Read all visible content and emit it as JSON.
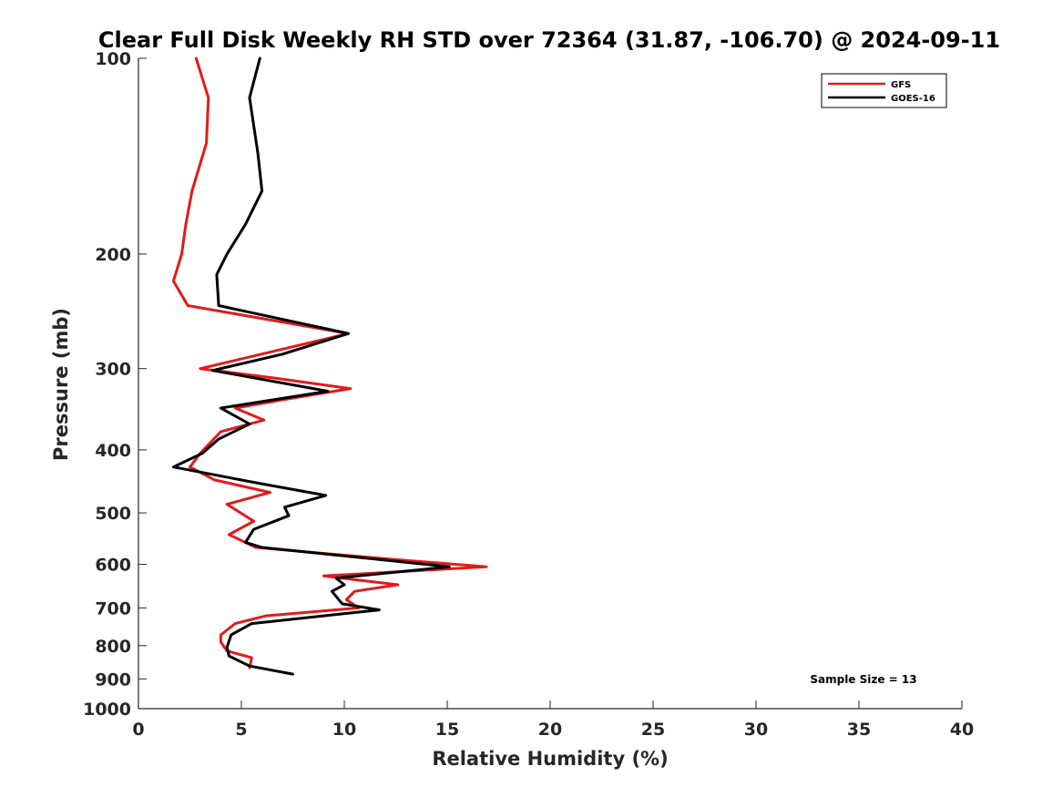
{
  "chart_data": {
    "type": "line",
    "title": "Clear Full Disk Weekly RH STD over 72364 (31.87, -106.70) @ 2024-09-11",
    "xlabel": "Relative Humidity (%)",
    "ylabel": "Pressure (mb)",
    "xlim": [
      0,
      40
    ],
    "ylim": [
      100,
      1000
    ],
    "yscale": "log",
    "y_reversed": true,
    "x_ticks": [
      0,
      5,
      10,
      15,
      20,
      25,
      30,
      35,
      40
    ],
    "y_ticks": [
      100,
      200,
      300,
      400,
      500,
      600,
      700,
      800,
      900,
      1000
    ],
    "grid": false,
    "legend_position": "top-right",
    "annotation": "Sample Size = 13",
    "series": [
      {
        "name": "GFS",
        "color": "#e31a1c",
        "points": [
          [
            2.8,
            100
          ],
          [
            3.4,
            115
          ],
          [
            3.3,
            135
          ],
          [
            2.6,
            160
          ],
          [
            2.3,
            180
          ],
          [
            2.1,
            200
          ],
          [
            1.7,
            220
          ],
          [
            2.4,
            240
          ],
          [
            10.2,
            265
          ],
          [
            7.0,
            280
          ],
          [
            3.0,
            300
          ],
          [
            6.5,
            310
          ],
          [
            10.3,
            322
          ],
          [
            7.0,
            335
          ],
          [
            4.7,
            345
          ],
          [
            6.1,
            360
          ],
          [
            4.0,
            375
          ],
          [
            3.0,
            405
          ],
          [
            2.5,
            425
          ],
          [
            3.7,
            445
          ],
          [
            6.4,
            465
          ],
          [
            4.3,
            485
          ],
          [
            5.6,
            515
          ],
          [
            4.4,
            540
          ],
          [
            5.7,
            565
          ],
          [
            12.5,
            590
          ],
          [
            16.9,
            605
          ],
          [
            9.0,
            625
          ],
          [
            12.6,
            645
          ],
          [
            10.5,
            660
          ],
          [
            10.1,
            680
          ],
          [
            10.7,
            700
          ],
          [
            6.2,
            720
          ],
          [
            4.7,
            740
          ],
          [
            4.0,
            770
          ],
          [
            4.0,
            790
          ],
          [
            4.3,
            815
          ],
          [
            5.5,
            835
          ],
          [
            5.4,
            865
          ]
        ]
      },
      {
        "name": "GOES-16",
        "color": "#000000",
        "points": [
          [
            5.9,
            100
          ],
          [
            5.4,
            115
          ],
          [
            5.8,
            140
          ],
          [
            6.0,
            160
          ],
          [
            5.2,
            180
          ],
          [
            4.3,
            200
          ],
          [
            3.8,
            215
          ],
          [
            3.9,
            240
          ],
          [
            10.2,
            265
          ],
          [
            7.0,
            285
          ],
          [
            3.6,
            302
          ],
          [
            9.2,
            325
          ],
          [
            4.0,
            345
          ],
          [
            5.4,
            365
          ],
          [
            3.9,
            385
          ],
          [
            3.1,
            405
          ],
          [
            1.7,
            425
          ],
          [
            5.8,
            450
          ],
          [
            9.1,
            470
          ],
          [
            7.1,
            490
          ],
          [
            7.3,
            505
          ],
          [
            5.6,
            530
          ],
          [
            5.2,
            555
          ],
          [
            6.0,
            565
          ],
          [
            15.1,
            605
          ],
          [
            9.6,
            630
          ],
          [
            10.0,
            645
          ],
          [
            9.4,
            660
          ],
          [
            9.9,
            690
          ],
          [
            11.7,
            705
          ],
          [
            5.5,
            740
          ],
          [
            4.5,
            770
          ],
          [
            4.3,
            805
          ],
          [
            4.4,
            830
          ],
          [
            5.4,
            860
          ],
          [
            7.5,
            885
          ]
        ]
      }
    ]
  }
}
